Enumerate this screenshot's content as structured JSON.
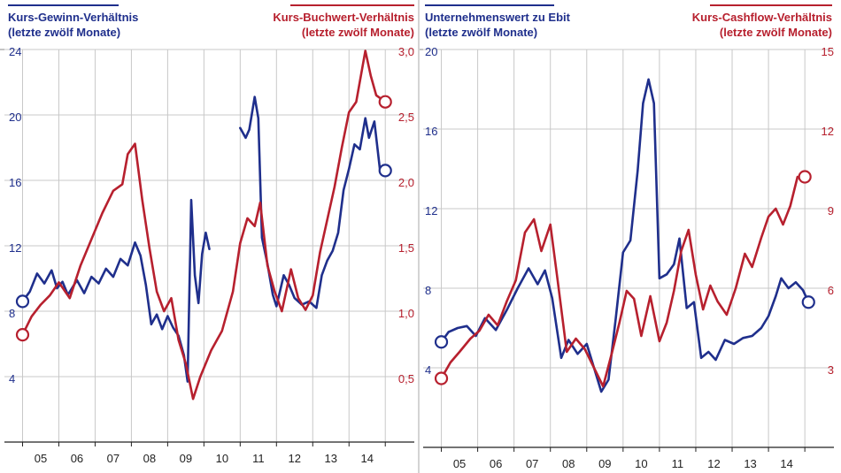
{
  "colors": {
    "blue": "#1f2f8c",
    "red": "#b7202e",
    "grid": "#c8c8c8",
    "axis": "#222222",
    "divider": "#aaaaaa"
  },
  "chart_data": [
    {
      "type": "line",
      "left_title": [
        "Kurs-Gewinn-Verhältnis",
        "(letzte zwölf Monate)"
      ],
      "right_title": [
        "Kurs-Buchwert-Verhältnis",
        "(letzte zwölf Monate)"
      ],
      "x_ticks": [
        "05",
        "06",
        "07",
        "08",
        "09",
        "10",
        "11",
        "12",
        "13",
        "14"
      ],
      "xlim": [
        2004.5,
        2015.8
      ],
      "left_axis": {
        "ylim": [
          0,
          24
        ],
        "ticks": [
          4,
          8,
          12,
          16,
          20,
          24
        ],
        "labels": [
          "4",
          "8",
          "12",
          "16",
          "20",
          "24"
        ]
      },
      "right_axis": {
        "ylim": [
          0,
          3.0
        ],
        "ticks": [
          0.5,
          1.0,
          1.5,
          2.0,
          2.5,
          3.0
        ],
        "labels": [
          "0,5",
          "1,0",
          "1,5",
          "2,0",
          "2,5",
          "3,0"
        ]
      },
      "series": [
        {
          "name": "Kurs-Gewinn-Verhältnis",
          "axis": "left",
          "color": "blue",
          "segments": [
            [
              [
                2005.0,
                8.6
              ],
              [
                2005.2,
                9.2
              ],
              [
                2005.4,
                10.3
              ],
              [
                2005.6,
                9.7
              ],
              [
                2005.8,
                10.5
              ],
              [
                2005.95,
                9.4
              ],
              [
                2006.1,
                9.8
              ],
              [
                2006.25,
                9.0
              ],
              [
                2006.5,
                9.9
              ],
              [
                2006.7,
                9.1
              ],
              [
                2006.9,
                10.1
              ],
              [
                2007.1,
                9.7
              ],
              [
                2007.3,
                10.6
              ],
              [
                2007.5,
                10.1
              ],
              [
                2007.7,
                11.2
              ],
              [
                2007.9,
                10.8
              ],
              [
                2008.1,
                12.2
              ],
              [
                2008.25,
                11.4
              ],
              [
                2008.4,
                9.6
              ],
              [
                2008.55,
                7.2
              ],
              [
                2008.7,
                7.8
              ],
              [
                2008.85,
                6.9
              ],
              [
                2009.0,
                7.7
              ],
              [
                2009.15,
                7.0
              ],
              [
                2009.3,
                6.5
              ],
              [
                2009.45,
                5.3
              ],
              [
                2009.55,
                3.7
              ],
              [
                2009.65,
                14.8
              ],
              [
                2009.75,
                10.2
              ],
              [
                2009.85,
                8.5
              ],
              [
                2009.95,
                11.5
              ],
              [
                2010.05,
                12.8
              ],
              [
                2010.15,
                11.8
              ]
            ],
            [
              [
                2011.0,
                19.2
              ],
              [
                2011.15,
                18.6
              ],
              [
                2011.25,
                19.1
              ],
              [
                2011.4,
                21.1
              ],
              [
                2011.5,
                19.8
              ],
              [
                2011.6,
                12.5
              ],
              [
                2011.75,
                10.9
              ],
              [
                2011.9,
                9.0
              ],
              [
                2012.0,
                8.3
              ],
              [
                2012.2,
                10.2
              ],
              [
                2012.35,
                9.6
              ],
              [
                2012.5,
                8.8
              ],
              [
                2012.7,
                8.4
              ],
              [
                2012.9,
                8.6
              ],
              [
                2013.1,
                8.2
              ],
              [
                2013.25,
                10.2
              ],
              [
                2013.4,
                11.1
              ],
              [
                2013.55,
                11.7
              ],
              [
                2013.7,
                12.8
              ],
              [
                2013.85,
                15.4
              ],
              [
                2014.0,
                16.7
              ],
              [
                2014.15,
                18.2
              ],
              [
                2014.3,
                17.9
              ],
              [
                2014.45,
                19.8
              ],
              [
                2014.55,
                18.6
              ],
              [
                2014.7,
                19.6
              ],
              [
                2014.85,
                16.7
              ],
              [
                2015.0,
                16.6
              ]
            ]
          ],
          "end_marker": [
            2015.0,
            16.6
          ],
          "start_marker": [
            2005.0,
            8.6
          ]
        },
        {
          "name": "Kurs-Buchwert-Verhältnis",
          "axis": "right",
          "color": "red",
          "segments": [
            [
              [
                2005.0,
                0.82
              ],
              [
                2005.25,
                0.96
              ],
              [
                2005.5,
                1.05
              ],
              [
                2005.75,
                1.12
              ],
              [
                2006.0,
                1.22
              ],
              [
                2006.3,
                1.1
              ],
              [
                2006.6,
                1.35
              ],
              [
                2006.9,
                1.55
              ],
              [
                2007.2,
                1.75
              ],
              [
                2007.5,
                1.92
              ],
              [
                2007.75,
                1.97
              ],
              [
                2007.9,
                2.2
              ],
              [
                2008.1,
                2.28
              ],
              [
                2008.3,
                1.85
              ],
              [
                2008.5,
                1.48
              ],
              [
                2008.7,
                1.15
              ],
              [
                2008.9,
                1.0
              ],
              [
                2009.1,
                1.1
              ],
              [
                2009.3,
                0.78
              ],
              [
                2009.5,
                0.6
              ],
              [
                2009.7,
                0.33
              ],
              [
                2009.9,
                0.5
              ],
              [
                2010.2,
                0.7
              ],
              [
                2010.5,
                0.85
              ],
              [
                2010.8,
                1.15
              ],
              [
                2011.0,
                1.52
              ],
              [
                2011.2,
                1.71
              ],
              [
                2011.4,
                1.65
              ],
              [
                2011.55,
                1.83
              ],
              [
                2011.75,
                1.35
              ],
              [
                2011.95,
                1.15
              ],
              [
                2012.15,
                1.0
              ],
              [
                2012.4,
                1.32
              ],
              [
                2012.6,
                1.1
              ],
              [
                2012.8,
                1.01
              ],
              [
                2013.0,
                1.12
              ],
              [
                2013.2,
                1.45
              ],
              [
                2013.4,
                1.7
              ],
              [
                2013.6,
                1.95
              ],
              [
                2013.8,
                2.25
              ],
              [
                2014.0,
                2.52
              ],
              [
                2014.2,
                2.6
              ],
              [
                2014.45,
                2.99
              ],
              [
                2014.6,
                2.8
              ],
              [
                2014.75,
                2.65
              ],
              [
                2014.9,
                2.62
              ],
              [
                2015.0,
                2.6
              ]
            ]
          ],
          "end_marker": [
            2015.0,
            2.6
          ],
          "start_marker": [
            2005.0,
            0.82
          ]
        }
      ]
    },
    {
      "type": "line",
      "left_title": [
        "Unternehmenswert zu Ebit",
        "(letzte zwölf Monate)"
      ],
      "right_title": [
        "Kurs-Cashflow-Verhältnis",
        "(letzte zwölf Monate)"
      ],
      "x_ticks": [
        "05",
        "06",
        "07",
        "08",
        "09",
        "10",
        "11",
        "12",
        "13",
        "14"
      ],
      "xlim": [
        2004.5,
        2015.8
      ],
      "left_axis": {
        "ylim": [
          0,
          20
        ],
        "ticks": [
          4,
          8,
          12,
          16,
          20
        ],
        "labels": [
          "4",
          "8",
          "12",
          "16",
          "20"
        ]
      },
      "right_axis": {
        "ylim": [
          0,
          15
        ],
        "ticks": [
          3,
          6,
          9,
          12,
          15
        ],
        "labels": [
          "3",
          "6",
          "9",
          "12",
          "15"
        ]
      },
      "series": [
        {
          "name": "Unternehmenswert zu Ebit",
          "axis": "left",
          "color": "blue",
          "segments": [
            [
              [
                2005.0,
                5.3
              ],
              [
                2005.2,
                5.8
              ],
              [
                2005.45,
                6.0
              ],
              [
                2005.7,
                6.1
              ],
              [
                2005.95,
                5.6
              ],
              [
                2006.2,
                6.5
              ],
              [
                2006.5,
                5.9
              ],
              [
                2006.8,
                6.9
              ],
              [
                2007.1,
                8.0
              ],
              [
                2007.4,
                9.0
              ],
              [
                2007.65,
                8.2
              ],
              [
                2007.85,
                8.9
              ],
              [
                2008.05,
                7.5
              ],
              [
                2008.3,
                4.5
              ],
              [
                2008.5,
                5.4
              ],
              [
                2008.75,
                4.7
              ],
              [
                2009.0,
                5.2
              ],
              [
                2009.2,
                4.0
              ],
              [
                2009.4,
                2.8
              ],
              [
                2009.6,
                3.4
              ],
              [
                2009.8,
                6.5
              ],
              [
                2010.0,
                9.8
              ],
              [
                2010.2,
                10.4
              ],
              [
                2010.4,
                13.9
              ],
              [
                2010.55,
                17.3
              ],
              [
                2010.7,
                18.5
              ],
              [
                2010.85,
                17.3
              ],
              [
                2011.0,
                8.5
              ],
              [
                2011.2,
                8.7
              ],
              [
                2011.4,
                9.2
              ],
              [
                2011.55,
                10.5
              ],
              [
                2011.75,
                7.0
              ],
              [
                2011.95,
                7.3
              ],
              [
                2012.15,
                4.5
              ],
              [
                2012.35,
                4.8
              ],
              [
                2012.55,
                4.4
              ],
              [
                2012.8,
                5.4
              ],
              [
                2013.05,
                5.2
              ],
              [
                2013.3,
                5.5
              ],
              [
                2013.55,
                5.6
              ],
              [
                2013.8,
                6.0
              ],
              [
                2014.0,
                6.6
              ],
              [
                2014.2,
                7.6
              ],
              [
                2014.35,
                8.5
              ],
              [
                2014.55,
                8.0
              ],
              [
                2014.75,
                8.3
              ],
              [
                2014.95,
                7.9
              ],
              [
                2015.1,
                7.3
              ]
            ]
          ],
          "end_marker": [
            2015.1,
            7.3
          ],
          "start_marker": [
            2005.0,
            5.3
          ]
        },
        {
          "name": "Kurs-Cashflow-Verhältnis",
          "axis": "right",
          "color": "red",
          "segments": [
            [
              [
                2005.0,
                2.6
              ],
              [
                2005.25,
                3.2
              ],
              [
                2005.5,
                3.6
              ],
              [
                2005.8,
                4.1
              ],
              [
                2006.05,
                4.4
              ],
              [
                2006.3,
                5.0
              ],
              [
                2006.55,
                4.6
              ],
              [
                2006.8,
                5.5
              ],
              [
                2007.05,
                6.3
              ],
              [
                2007.3,
                8.1
              ],
              [
                2007.55,
                8.6
              ],
              [
                2007.75,
                7.4
              ],
              [
                2008.0,
                8.4
              ],
              [
                2008.2,
                6.3
              ],
              [
                2008.45,
                3.6
              ],
              [
                2008.7,
                4.1
              ],
              [
                2008.95,
                3.7
              ],
              [
                2009.2,
                3.0
              ],
              [
                2009.45,
                2.3
              ],
              [
                2009.7,
                3.6
              ],
              [
                2009.9,
                4.7
              ],
              [
                2010.1,
                5.9
              ],
              [
                2010.3,
                5.6
              ],
              [
                2010.5,
                4.2
              ],
              [
                2010.75,
                5.7
              ],
              [
                2011.0,
                4.0
              ],
              [
                2011.2,
                4.7
              ],
              [
                2011.4,
                5.9
              ],
              [
                2011.6,
                7.4
              ],
              [
                2011.8,
                8.2
              ],
              [
                2012.0,
                6.5
              ],
              [
                2012.2,
                5.2
              ],
              [
                2012.4,
                6.1
              ],
              [
                2012.6,
                5.5
              ],
              [
                2012.85,
                5.0
              ],
              [
                2013.1,
                6.0
              ],
              [
                2013.35,
                7.3
              ],
              [
                2013.55,
                6.8
              ],
              [
                2013.8,
                7.9
              ],
              [
                2014.0,
                8.7
              ],
              [
                2014.2,
                9.0
              ],
              [
                2014.4,
                8.4
              ],
              [
                2014.6,
                9.1
              ],
              [
                2014.8,
                10.2
              ],
              [
                2015.0,
                10.2
              ]
            ]
          ],
          "end_marker": [
            2015.0,
            10.2
          ],
          "start_marker": [
            2005.0,
            2.6
          ]
        }
      ]
    }
  ]
}
